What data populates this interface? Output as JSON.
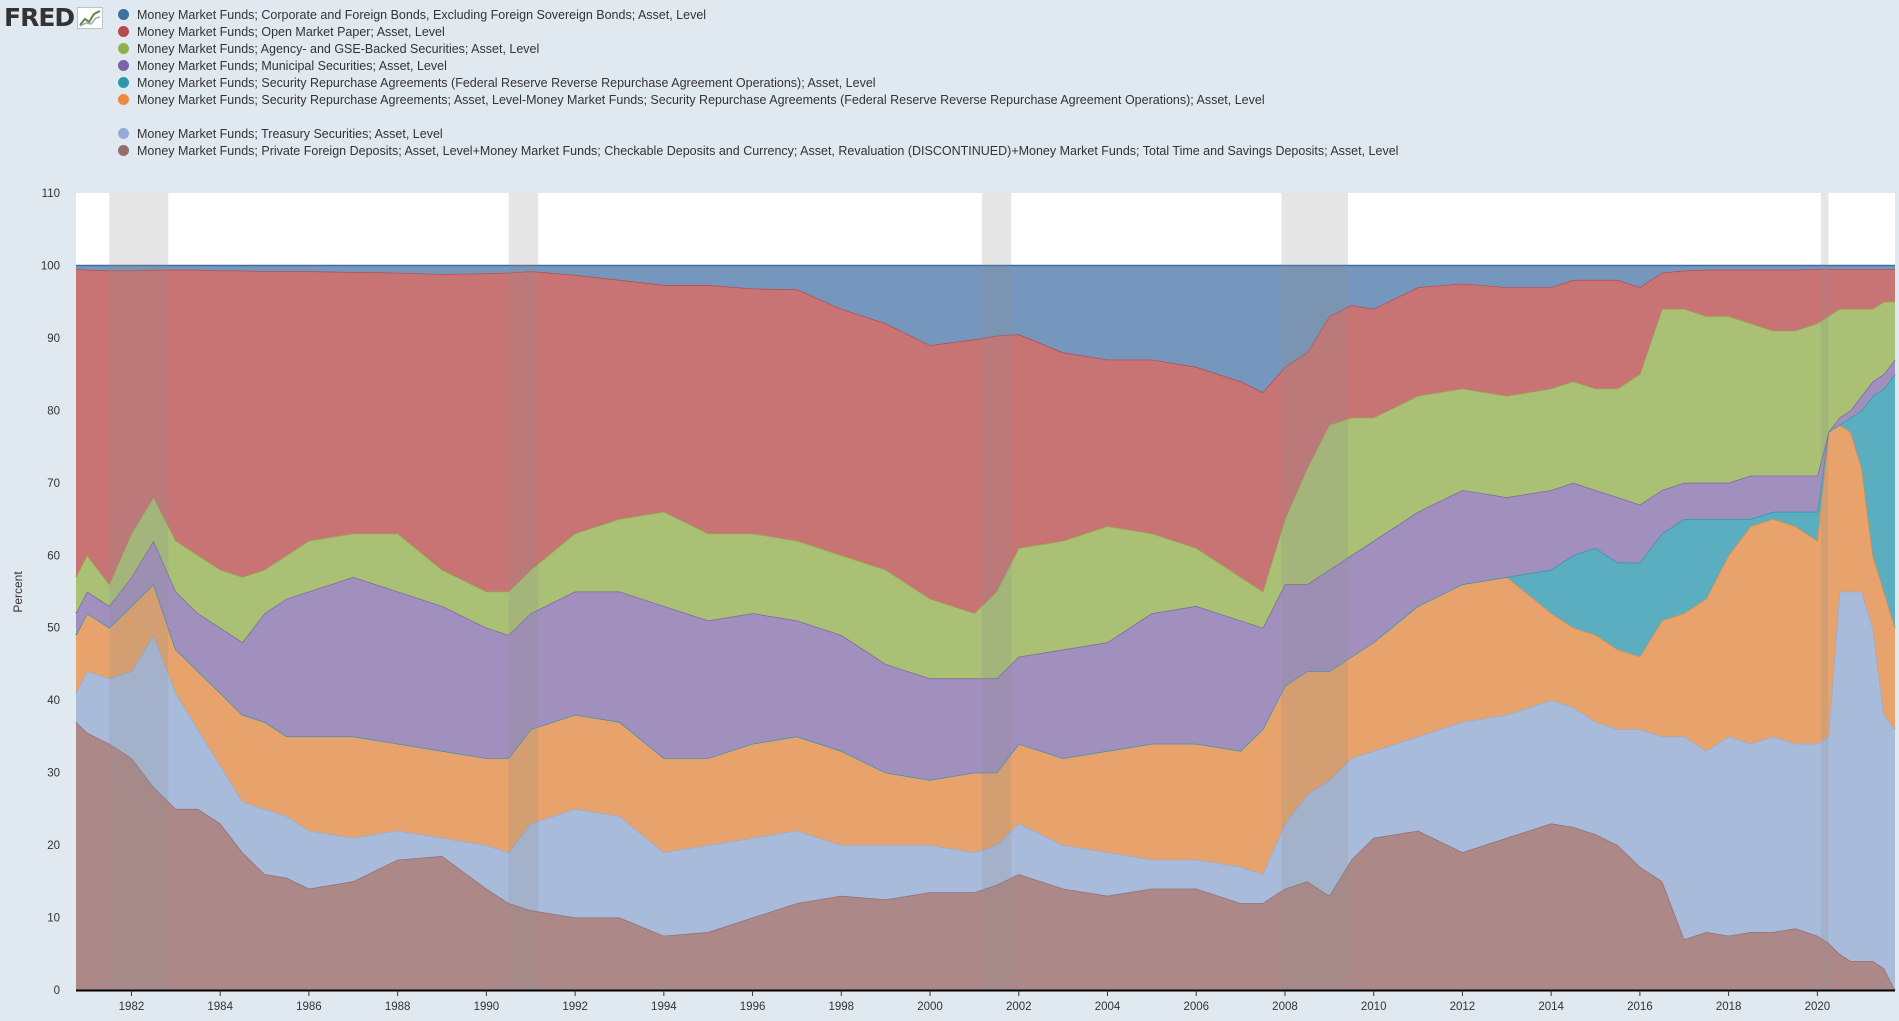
{
  "brand": {
    "name": "FRED",
    "mark_icon": "fred-chart-icon"
  },
  "chart_data": {
    "type": "area",
    "stacked": "percent",
    "ylabel": "Percent",
    "xlabel": "",
    "title": "",
    "ylim": [
      0,
      110
    ],
    "yticks": [
      0,
      10,
      20,
      30,
      40,
      50,
      60,
      70,
      80,
      90,
      100,
      110
    ],
    "xlim": [
      1980.75,
      2021.75
    ],
    "xticks": [
      "1982",
      "1984",
      "1986",
      "1988",
      "1990",
      "1992",
      "1994",
      "1996",
      "1998",
      "2000",
      "2002",
      "2004",
      "2006",
      "2008",
      "2010",
      "2012",
      "2014",
      "2016",
      "2018",
      "2020"
    ],
    "grid": false,
    "legend_position": "top-left",
    "recessions": [
      [
        1981.5,
        1982.83
      ],
      [
        1990.5,
        1991.17
      ],
      [
        2001.17,
        2001.83
      ],
      [
        2007.92,
        2009.42
      ],
      [
        2020.08,
        2020.25
      ]
    ],
    "x": [
      1980.75,
      1981.0,
      1981.5,
      1982.0,
      1982.5,
      1983.0,
      1983.5,
      1984.0,
      1984.5,
      1985.0,
      1985.5,
      1986.0,
      1987.0,
      1988.0,
      1989.0,
      1990.0,
      1990.5,
      1991.0,
      1992.0,
      1993.0,
      1994.0,
      1995.0,
      1996.0,
      1997.0,
      1998.0,
      1999.0,
      2000.0,
      2001.0,
      2001.5,
      2002.0,
      2003.0,
      2004.0,
      2005.0,
      2006.0,
      2007.0,
      2007.5,
      2008.0,
      2008.5,
      2009.0,
      2009.5,
      2010.0,
      2011.0,
      2012.0,
      2013.0,
      2014.0,
      2014.5,
      2015.0,
      2015.5,
      2016.0,
      2016.5,
      2017.0,
      2017.5,
      2018.0,
      2018.5,
      2019.0,
      2019.5,
      2020.0,
      2020.25,
      2020.5,
      2020.75,
      2021.0,
      2021.25,
      2021.5,
      2021.75
    ],
    "series": [
      {
        "name": "Money Market Funds; Private Foreign Deposits; Asset, Level+Money Market Funds; Checkable Deposits and Currency; Asset, Revaluation (DISCONTINUED)+Money Market Funds; Total Time and Savings Deposits; Asset, Level",
        "color": "#ad8888",
        "values": [
          37,
          35.5,
          34,
          32,
          28,
          25,
          25,
          23,
          19,
          16,
          15.5,
          14,
          15,
          18,
          18.5,
          14,
          12,
          11,
          10,
          10,
          7.5,
          8,
          10,
          12,
          13,
          12.5,
          13.5,
          13.5,
          14.5,
          16,
          14,
          13,
          14,
          14,
          12,
          12,
          14,
          15,
          13,
          18,
          21,
          22,
          19,
          21,
          23,
          22.5,
          21.5,
          20,
          17,
          15,
          7,
          8,
          7.5,
          8,
          8,
          8.5,
          7.5,
          6.5,
          5,
          4,
          4,
          4,
          3,
          0
        ]
      },
      {
        "name": "Money Market Funds; Treasury Securities; Asset, Level",
        "color": "#a9bbdb",
        "values": [
          41,
          44,
          43,
          44,
          49,
          41,
          36,
          31,
          26,
          25,
          24,
          22,
          21,
          22,
          21,
          20,
          19,
          23,
          25,
          24,
          19,
          20,
          21,
          22,
          20,
          20,
          20,
          19,
          20,
          23,
          20,
          19,
          18,
          18,
          17,
          16,
          23,
          27,
          29,
          32,
          33,
          35,
          37,
          38,
          40,
          39,
          37,
          36,
          36,
          35,
          35,
          33,
          35,
          34,
          35,
          34,
          34,
          35,
          55,
          55,
          55,
          50,
          38,
          36
        ]
      },
      {
        "name": "Money Market Funds; Security Repurchase Agreements; Asset, Level-Money Market Funds; Security Repurchase Agreements (Federal Reserve Reverse Repurchase Agreement Operations); Asset, Level",
        "color": "#e8a36c",
        "values": [
          49,
          52,
          50,
          53,
          56,
          47,
          44,
          41,
          38,
          37,
          35,
          35,
          35,
          34,
          33,
          32,
          32,
          36,
          38,
          37,
          32,
          32,
          34,
          35,
          33,
          30,
          29,
          30,
          30,
          34,
          32,
          33,
          34,
          34,
          33,
          36,
          42,
          44,
          44,
          46,
          48,
          53,
          56,
          57,
          52,
          50,
          49,
          47,
          46,
          51,
          52,
          54,
          60,
          64,
          65,
          64,
          62,
          77,
          78,
          77,
          72,
          60,
          55,
          50
        ]
      },
      {
        "name": "Money Market Funds; Security Repurchase Agreements (Federal Reserve Reverse Repurchase Agreement Operations); Asset, Level",
        "color": "#5aaebf",
        "values": [
          49,
          52,
          50,
          53,
          56,
          47,
          44,
          41,
          38,
          37,
          35,
          35,
          35,
          34,
          33,
          32,
          32,
          36,
          38,
          37,
          32,
          32,
          34,
          35,
          33,
          30,
          29,
          30,
          30,
          34,
          32,
          33,
          34,
          34,
          33,
          36,
          42,
          44,
          44,
          46,
          48,
          53,
          56,
          57,
          58,
          60,
          61,
          59,
          59,
          63,
          65,
          65,
          65,
          65,
          66,
          66,
          66,
          77,
          78,
          79,
          80,
          82,
          83,
          85
        ]
      },
      {
        "name": "Money Market Funds; Municipal Securities; Asset, Level",
        "color": "#a190bd",
        "values": [
          52,
          55,
          53,
          57,
          62,
          55,
          52,
          50,
          48,
          52,
          54,
          55,
          57,
          55,
          53,
          50,
          49,
          52,
          55,
          55,
          53,
          51,
          52,
          51,
          49,
          45,
          43,
          43,
          43,
          46,
          47,
          48,
          52,
          53,
          51,
          50,
          56,
          56,
          58,
          60,
          62,
          66,
          69,
          68,
          69,
          70,
          69,
          68,
          67,
          69,
          70,
          70,
          70,
          71,
          71,
          71,
          71,
          77,
          79,
          80,
          82,
          84,
          85,
          87
        ]
      },
      {
        "name": "Money Market Funds; Agency- and GSE-Backed Securities; Asset, Level",
        "color": "#a9c075",
        "values": [
          57,
          60,
          56,
          63,
          68,
          62,
          60,
          58,
          57,
          58,
          60,
          62,
          63,
          63,
          58,
          55,
          55,
          58,
          63,
          65,
          66,
          63,
          63,
          62,
          60,
          58,
          54,
          52,
          55,
          61,
          62,
          64,
          63,
          61,
          57,
          55,
          65,
          72,
          78,
          79,
          79,
          82,
          83,
          82,
          83,
          84,
          83,
          83,
          85,
          94,
          94,
          93,
          93,
          92,
          91,
          91,
          92,
          93,
          94,
          94,
          94,
          94,
          95,
          95
        ]
      },
      {
        "name": "Money Market Funds; Open Market Paper; Asset, Level",
        "color": "#c97474",
        "values": [
          99.5,
          99.4,
          99.3,
          99.3,
          99.4,
          99.4,
          99.4,
          99.3,
          99.3,
          99.2,
          99.2,
          99.2,
          99.1,
          99.0,
          98.8,
          98.9,
          99.0,
          99.2,
          98.7,
          98.0,
          97.3,
          97.3,
          96.8,
          96.7,
          94,
          92,
          89,
          89.8,
          90.3,
          90.5,
          88,
          87,
          87,
          86,
          84,
          82.5,
          86,
          88,
          93,
          94.5,
          94,
          97,
          97.5,
          97,
          97,
          98,
          98,
          98,
          97,
          99,
          99.3,
          99.4,
          99.4,
          99.4,
          99.4,
          99.4,
          99.5,
          99.5,
          99.5,
          99.5,
          99.5,
          99.5,
          99.5,
          99.5
        ]
      },
      {
        "name": "Money Market Funds; Corporate and Foreign Bonds, Excluding Foreign Sovereign Bonds; Asset, Level",
        "color": "#7596bd",
        "values": [
          100,
          100,
          100,
          100,
          100,
          100,
          100,
          100,
          100,
          100,
          100,
          100,
          100,
          100,
          100,
          100,
          100,
          100,
          100,
          100,
          100,
          100,
          100,
          100,
          100,
          100,
          100,
          100,
          100,
          100,
          100,
          100,
          100,
          100,
          100,
          100,
          100,
          100,
          100,
          100,
          100,
          100,
          100,
          100,
          100,
          100,
          100,
          100,
          100,
          100,
          100,
          100,
          100,
          100,
          100,
          100,
          100,
          100,
          100,
          100,
          100,
          100,
          100,
          100
        ]
      }
    ]
  },
  "legend": [
    {
      "label": "Money Market Funds; Corporate and Foreign Bonds, Excluding Foreign Sovereign Bonds; Asset, Level",
      "color": "#3f6ea3"
    },
    {
      "label": "Money Market Funds; Open Market Paper; Asset, Level",
      "color": "#b54a4a"
    },
    {
      "label": "Money Market Funds; Agency- and GSE-Backed Securities; Asset, Level",
      "color": "#8fb04d"
    },
    {
      "label": "Money Market Funds; Municipal Securities; Asset, Level",
      "color": "#7a63a6"
    },
    {
      "label": "Money Market Funds; Security Repurchase Agreements (Federal Reserve Reverse Repurchase Agreement Operations); Asset, Level",
      "color": "#2e97ad"
    },
    {
      "label": "Money Market Funds; Security Repurchase Agreements; Asset, Level-Money Market Funds; Security Repurchase Agreements (Federal Reserve Reverse Repurchase Agreement Operations); Asset, Level",
      "color": "#ee8a3e"
    },
    {
      "label": "Money Market Funds; Treasury Securities; Asset, Level",
      "color": "#92acd6",
      "gap_before": true
    },
    {
      "label": "Money Market Funds; Private Foreign Deposits; Asset, Level+Money Market Funds; Checkable Deposits and Currency; Asset, Revaluation (DISCONTINUED)+Money Market Funds; Total Time and Savings Deposits; Asset, Level",
      "color": "#946d6d"
    }
  ]
}
